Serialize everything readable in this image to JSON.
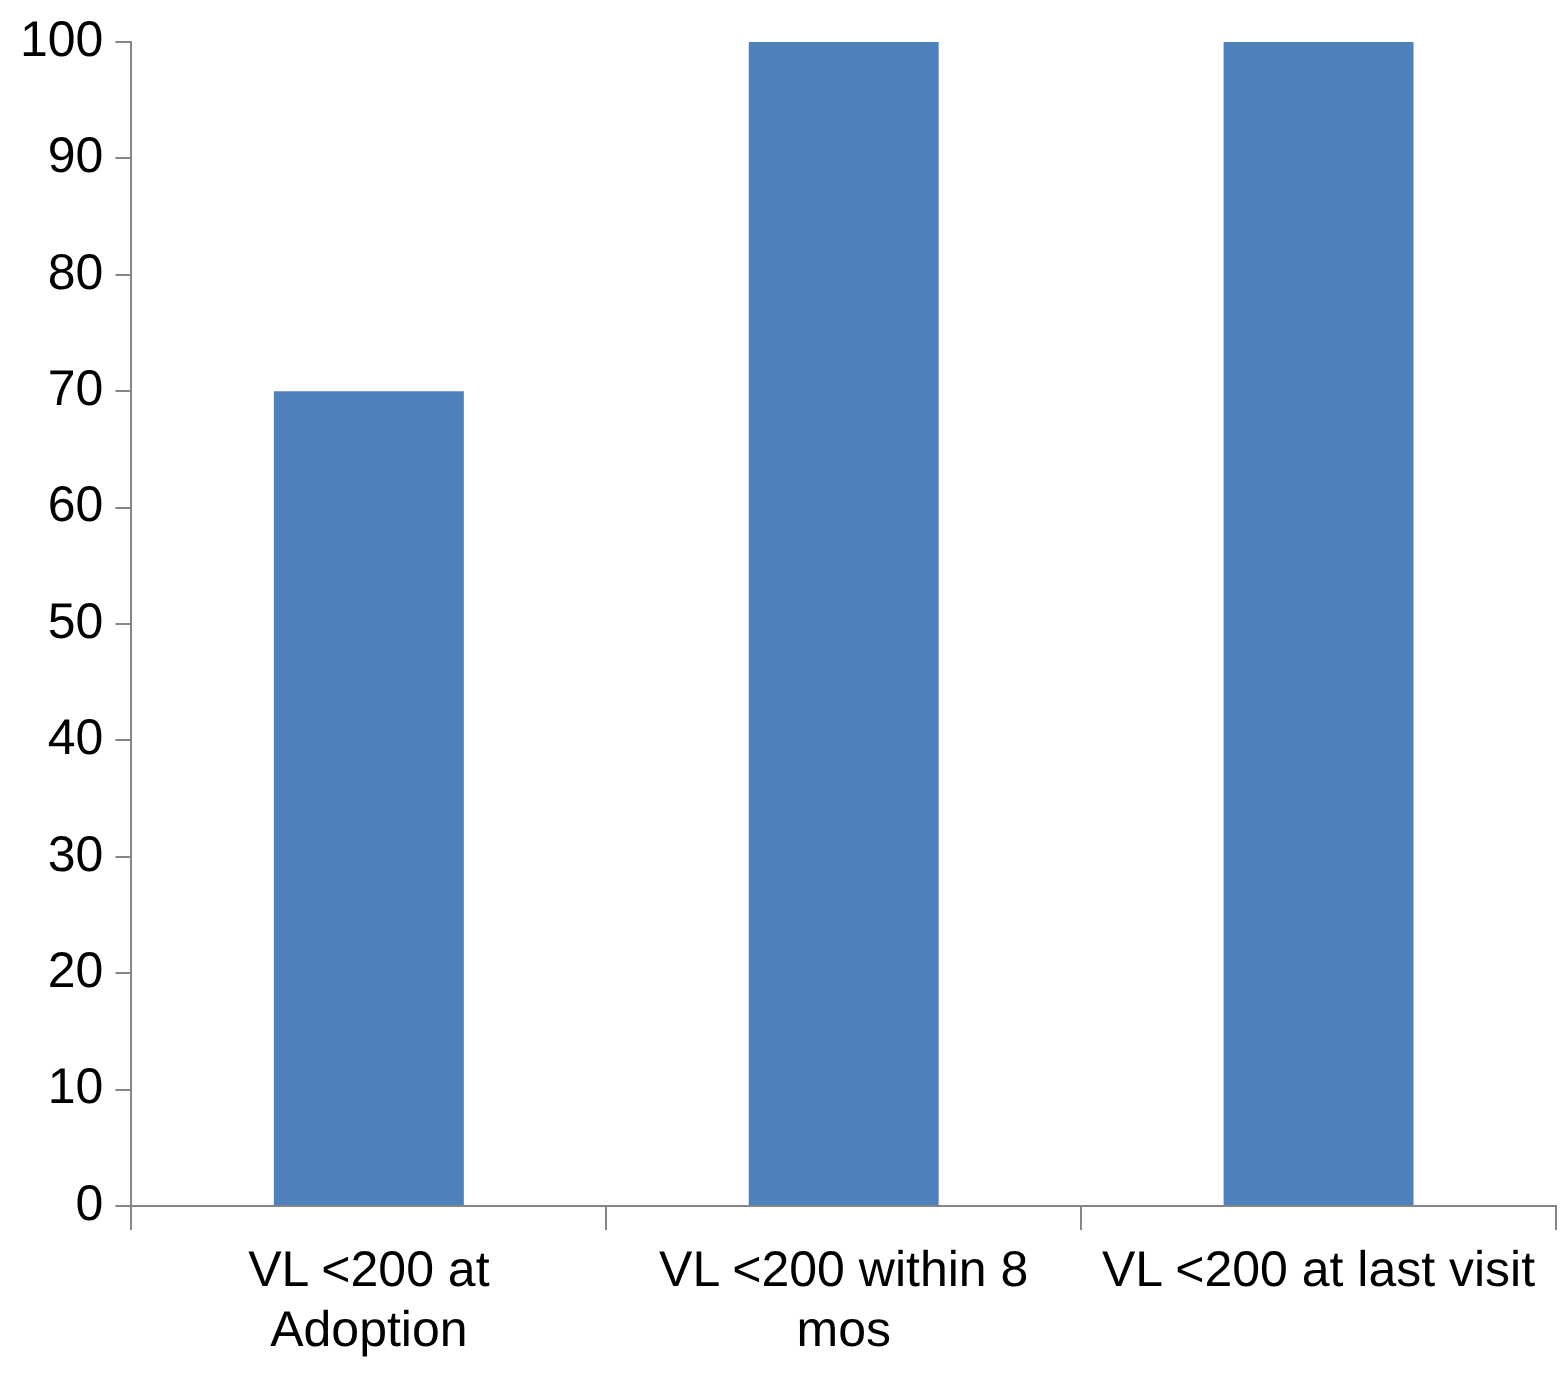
{
  "chart_data": {
    "type": "bar",
    "categories": [
      "VL <200 at Adoption",
      "VL <200 within 8 mos",
      "VL <200 at last visit"
    ],
    "values": [
      70,
      100,
      100
    ],
    "color": "#4f81bd",
    "ylim": [
      0,
      100
    ],
    "yticks": [
      0,
      10,
      20,
      30,
      40,
      50,
      60,
      70,
      80,
      90,
      100
    ],
    "grid": false
  }
}
